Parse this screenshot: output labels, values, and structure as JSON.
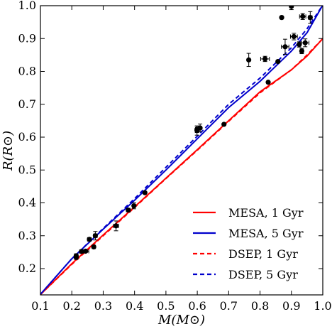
{
  "chart_data": {
    "type": "scatter",
    "xlabel": "M(M⊙)",
    "ylabel": "R(R⊙)",
    "xlim": [
      0.1,
      1.0
    ],
    "ylim": [
      0.12,
      1.0
    ],
    "xticks": [
      "0.1",
      "0.2",
      "0.3",
      "0.4",
      "0.5",
      "0.6",
      "0.7",
      "0.8",
      "0.9",
      "1.0"
    ],
    "yticks": [
      "0.2",
      "0.3",
      "0.4",
      "0.5",
      "0.6",
      "0.7",
      "0.8",
      "0.9",
      "1.0"
    ],
    "xtick_values": [
      0.1,
      0.2,
      0.3,
      0.4,
      0.5,
      0.6,
      0.7,
      0.8,
      0.9,
      1.0
    ],
    "ytick_values": [
      0.2,
      0.3,
      0.4,
      0.5,
      0.6,
      0.7,
      0.8,
      0.9,
      1.0
    ],
    "legend_position": "lower-right",
    "grid": false,
    "series": [
      {
        "name": "MESA, 1 Gyr",
        "color": "#ff0000",
        "dash": "solid",
        "x": [
          0.1,
          0.2,
          0.3,
          0.4,
          0.5,
          0.6,
          0.7,
          0.8,
          0.9,
          0.95,
          1.0
        ],
        "y": [
          0.121,
          0.215,
          0.302,
          0.388,
          0.475,
          0.562,
          0.65,
          0.738,
          0.805,
          0.847,
          0.9
        ]
      },
      {
        "name": "MESA, 5 Gyr",
        "color": "#0000cc",
        "dash": "solid",
        "x": [
          0.1,
          0.2,
          0.3,
          0.4,
          0.5,
          0.6,
          0.7,
          0.8,
          0.9,
          0.95,
          1.0
        ],
        "y": [
          0.122,
          0.23,
          0.32,
          0.408,
          0.5,
          0.595,
          0.69,
          0.77,
          0.862,
          0.918,
          1.002
        ]
      },
      {
        "name": "DSEP, 1 Gyr",
        "color": "#ff0000",
        "dash": "dashed",
        "x": [
          0.1,
          0.2,
          0.3,
          0.4,
          0.5,
          0.6,
          0.7,
          0.8,
          0.9,
          0.95,
          1.0
        ],
        "y": [
          0.121,
          0.213,
          0.3,
          0.386,
          0.474,
          0.56,
          0.648,
          0.735,
          0.805,
          0.85,
          0.9
        ]
      },
      {
        "name": "DSEP, 5 Gyr",
        "color": "#0000cc",
        "dash": "dashed",
        "x": [
          0.1,
          0.2,
          0.3,
          0.4,
          0.5,
          0.6,
          0.7,
          0.8,
          0.9,
          0.95,
          1.0
        ],
        "y": [
          0.122,
          0.23,
          0.322,
          0.413,
          0.508,
          0.603,
          0.7,
          0.78,
          0.872,
          0.93,
          1.002
        ]
      }
    ],
    "points": [
      {
        "x": 0.214,
        "y": 0.234,
        "xerr": 0.004,
        "yerr": 0.006
      },
      {
        "x": 0.214,
        "y": 0.239,
        "xerr": 0.004,
        "yerr": 0.006
      },
      {
        "x": 0.231,
        "y": 0.252,
        "xerr": 0.006,
        "yerr": 0.004
      },
      {
        "x": 0.244,
        "y": 0.253,
        "xerr": 0.01,
        "yerr": 0.004
      },
      {
        "x": 0.256,
        "y": 0.289,
        "xerr": 0.006,
        "yerr": 0.004
      },
      {
        "x": 0.27,
        "y": 0.266,
        "xerr": 0.005,
        "yerr": 0.004
      },
      {
        "x": 0.275,
        "y": 0.3,
        "xerr": 0.006,
        "yerr": 0.013
      },
      {
        "x": 0.341,
        "y": 0.33,
        "xerr": 0.008,
        "yerr": 0.015
      },
      {
        "x": 0.38,
        "y": 0.378,
        "xerr": 0.006,
        "yerr": 0.004
      },
      {
        "x": 0.398,
        "y": 0.391,
        "xerr": 0.005,
        "yerr": 0.009
      },
      {
        "x": 0.433,
        "y": 0.431,
        "xerr": 0.002,
        "yerr": 0.003
      },
      {
        "x": 0.599,
        "y": 0.62,
        "xerr": 0.005,
        "yerr": 0.014
      },
      {
        "x": 0.599,
        "y": 0.624,
        "xerr": 0.005,
        "yerr": 0.01
      },
      {
        "x": 0.609,
        "y": 0.628,
        "xerr": 0.004,
        "yerr": 0.012
      },
      {
        "x": 0.685,
        "y": 0.639,
        "xerr": 0.003,
        "yerr": 0.003
      },
      {
        "x": 0.764,
        "y": 0.835,
        "xerr": 0.003,
        "yerr": 0.02
      },
      {
        "x": 0.816,
        "y": 0.838,
        "xerr": 0.014,
        "yerr": 0.008
      },
      {
        "x": 0.826,
        "y": 0.767,
        "xerr": 0.004,
        "yerr": 0.003
      },
      {
        "x": 0.857,
        "y": 0.83,
        "xerr": 0.004,
        "yerr": 0.004
      },
      {
        "x": 0.869,
        "y": 0.964,
        "xerr": 0.004,
        "yerr": 0.004
      },
      {
        "x": 0.88,
        "y": 0.875,
        "xerr": 0.012,
        "yerr": 0.023
      },
      {
        "x": 0.908,
        "y": 0.906,
        "xerr": 0.011,
        "yerr": 0.01
      },
      {
        "x": 0.9,
        "y": 0.998,
        "xerr": 0.003,
        "yerr": 0.01
      },
      {
        "x": 0.925,
        "y": 0.882,
        "xerr": 0.004,
        "yerr": 0.008
      },
      {
        "x": 0.933,
        "y": 0.862,
        "xerr": 0.005,
        "yerr": 0.008
      },
      {
        "x": 0.936,
        "y": 0.967,
        "xerr": 0.01,
        "yerr": 0.009
      },
      {
        "x": 0.944,
        "y": 0.887,
        "xerr": 0.012,
        "yerr": 0.012
      },
      {
        "x": 0.96,
        "y": 0.964,
        "xerr": 0.006,
        "yerr": 0.018
      }
    ]
  }
}
